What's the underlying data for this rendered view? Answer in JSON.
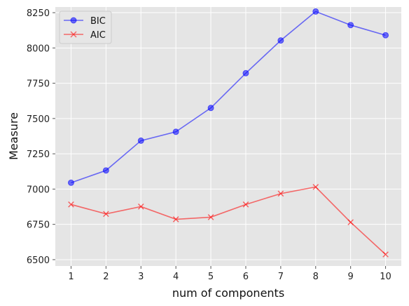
{
  "chart_data": {
    "type": "line",
    "title": "",
    "xlabel": "num of components",
    "ylabel": "Measure",
    "x": [
      1,
      2,
      3,
      4,
      5,
      6,
      7,
      8,
      9,
      10
    ],
    "xticks": [
      "1",
      "2",
      "3",
      "4",
      "5",
      "6",
      "7",
      "8",
      "9",
      "10"
    ],
    "yticks": [
      "6500",
      "6750",
      "7000",
      "7250",
      "7500",
      "7750",
      "8000",
      "8250"
    ],
    "ytick_values": [
      6500,
      6750,
      7000,
      7250,
      7500,
      7750,
      8000,
      8250
    ],
    "ylim": [
      6455,
      8290
    ],
    "xlim": [
      0.55,
      10.45
    ],
    "grid": true,
    "legend_position": "top-left",
    "series": [
      {
        "name": "BIC",
        "marker": "circle",
        "color": "#0000ff",
        "values": [
          7045,
          7132,
          7343,
          7406,
          7575,
          7821,
          8053,
          8258,
          8162,
          8090
        ]
      },
      {
        "name": "AIC",
        "marker": "x",
        "color": "#ff0000",
        "values": [
          6891,
          6824,
          6876,
          6786,
          6801,
          6891,
          6968,
          7015,
          6765,
          6537
        ]
      }
    ]
  }
}
